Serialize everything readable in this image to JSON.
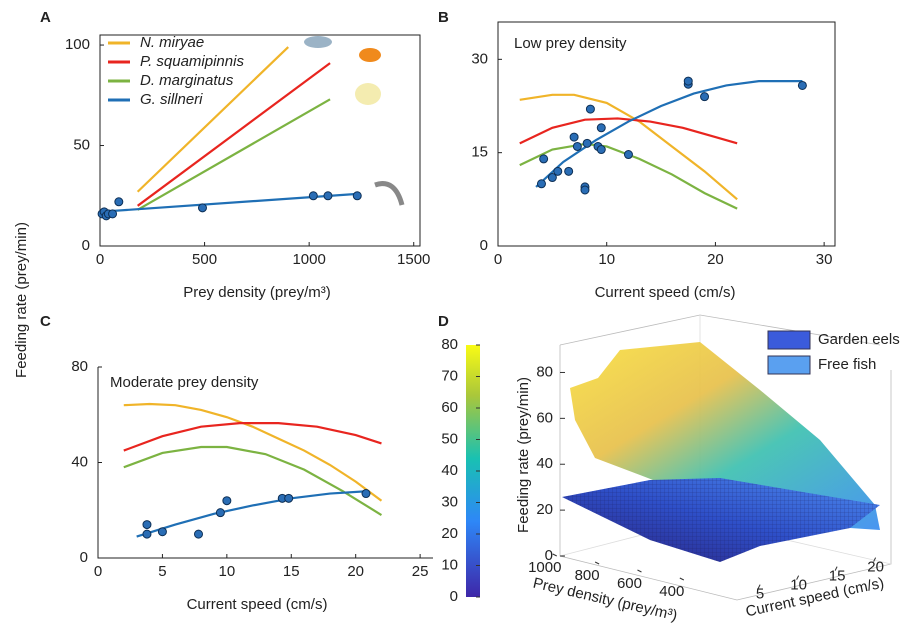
{
  "chart_data": [
    {
      "type": "line",
      "panel_label": "A",
      "ylabel": "Feeding rate (prey/min)",
      "xlabel": "Prey density (prey/m³)",
      "xlim": [
        0,
        1530
      ],
      "xticks": [
        0,
        500,
        1000,
        1500
      ],
      "ylim": [
        0,
        105
      ],
      "yticks": [
        0,
        50,
        100
      ],
      "grid": false,
      "box": true,
      "legend": "upper left",
      "series": [
        {
          "name": "N. miryae",
          "color": "#f0b429",
          "x": [
            180,
            900
          ],
          "values": [
            27,
            99
          ]
        },
        {
          "name": "P. squamipinnis",
          "color": "#e8251f",
          "x": [
            180,
            1100
          ],
          "values": [
            20,
            91
          ]
        },
        {
          "name": "D. marginatus",
          "color": "#7cb342",
          "x": [
            180,
            1100
          ],
          "values": [
            18,
            73
          ]
        },
        {
          "name": "G. sillneri",
          "color": "#1f6fb5",
          "x": [
            0,
            1240
          ],
          "values": [
            17,
            26
          ]
        }
      ],
      "points": {
        "color": "#2a6db5",
        "x": [
          10,
          20,
          30,
          40,
          60,
          90,
          490,
          1020,
          1090,
          1230
        ],
        "values": [
          16,
          17,
          15,
          16,
          16,
          22,
          19,
          25,
          25,
          25
        ]
      }
    },
    {
      "type": "line",
      "panel_label": "B",
      "annotation": "Low prey density",
      "xlabel": "Current speed (cm/s)",
      "xlim": [
        0,
        31
      ],
      "xticks": [
        0,
        10,
        20,
        30
      ],
      "ylim": [
        0,
        36
      ],
      "yticks": [
        0,
        15,
        30
      ],
      "grid": false,
      "box": true,
      "series": [
        {
          "color": "#f0b429",
          "x": [
            2,
            5,
            7,
            10,
            13,
            16,
            19,
            22
          ],
          "values": [
            23.5,
            24.3,
            24.3,
            23,
            20,
            16,
            12,
            7.5
          ]
        },
        {
          "color": "#e8251f",
          "x": [
            2,
            5,
            8,
            11,
            14,
            17,
            20,
            22
          ],
          "values": [
            16.5,
            19,
            20.3,
            20.5,
            20,
            19,
            17.5,
            16.5
          ]
        },
        {
          "color": "#7cb342",
          "x": [
            2,
            5,
            8,
            10,
            13,
            16,
            19,
            22
          ],
          "values": [
            13,
            15.5,
            16.4,
            16,
            14,
            11.5,
            8.5,
            6
          ]
        },
        {
          "color": "#1f6fb5",
          "x": [
            3.5,
            6,
            9,
            12,
            15,
            18,
            21,
            24,
            28
          ],
          "values": [
            9.5,
            13.5,
            17,
            20,
            22.5,
            24.5,
            25.8,
            26.5,
            26.5
          ]
        }
      ],
      "points": {
        "color": "#2a6db5",
        "x": [
          4,
          4.2,
          5,
          5.5,
          6.5,
          7,
          7.3,
          8,
          8,
          8.2,
          8.5,
          9.2,
          9.5,
          9.5,
          12,
          17.5,
          17.5,
          19,
          28
        ],
        "values": [
          10,
          14,
          11,
          12,
          12,
          17.5,
          16,
          9.5,
          9,
          16.5,
          22,
          16,
          19,
          15.5,
          14.7,
          26,
          26.5,
          24,
          25.8
        ]
      }
    },
    {
      "type": "line",
      "panel_label": "C",
      "annotation": "Moderate prey density",
      "xlabel": "Current speed (cm/s)",
      "xlim": [
        0,
        26
      ],
      "xticks": [
        0,
        5,
        10,
        15,
        20,
        25
      ],
      "ylim": [
        0,
        80
      ],
      "yticks": [
        0,
        40,
        80
      ],
      "grid": false,
      "box": false,
      "series": [
        {
          "color": "#f0b429",
          "x": [
            2,
            4,
            6,
            8,
            10,
            12,
            14,
            16,
            18,
            20,
            22
          ],
          "values": [
            64,
            64.5,
            64,
            62,
            59,
            55,
            50,
            45,
            39,
            32,
            24
          ]
        },
        {
          "color": "#e8251f",
          "x": [
            2,
            5,
            8,
            11,
            14,
            17,
            20,
            22
          ],
          "values": [
            45,
            51,
            55,
            56.5,
            56.5,
            55,
            51.5,
            48
          ]
        },
        {
          "color": "#7cb342",
          "x": [
            2,
            5,
            8,
            10,
            13,
            16,
            19,
            22
          ],
          "values": [
            38,
            44,
            46.5,
            46.5,
            43.5,
            37,
            28,
            18
          ]
        },
        {
          "color": "#1f6fb5",
          "x": [
            3,
            6,
            9,
            12,
            15,
            18,
            21
          ],
          "values": [
            9,
            14,
            18.5,
            22,
            25,
            27,
            28
          ]
        }
      ],
      "points": {
        "color": "#2a6db5",
        "x": [
          3.8,
          3.8,
          5,
          7.8,
          9.5,
          10,
          14.3,
          14.8,
          20.8
        ],
        "values": [
          10,
          14,
          11,
          10,
          19,
          24,
          25,
          25,
          27
        ]
      }
    },
    {
      "type": "surface3d",
      "panel_label": "D",
      "xlabel": "Prey density (prey/m³)",
      "xlim": [
        1150,
        300
      ],
      "xticks": [
        1000,
        800,
        600,
        400
      ],
      "ylabel": "Current speed (cm/s)",
      "ylim": [
        2,
        22
      ],
      "yticks": [
        5,
        10,
        15,
        20
      ],
      "zlabel": "Feeding rate (prey/min)",
      "zlim": [
        0,
        85
      ],
      "zticks": [
        0,
        20,
        40,
        60,
        80
      ],
      "colorbar": {
        "lim": [
          0,
          80
        ],
        "ticks": [
          0,
          10,
          20,
          30,
          40,
          50,
          60,
          70,
          80
        ]
      },
      "series": [
        {
          "name": "Garden eels",
          "color": "#3b5bdb"
        },
        {
          "name": "Free fish",
          "color": "#5aa0f0"
        }
      ]
    }
  ]
}
